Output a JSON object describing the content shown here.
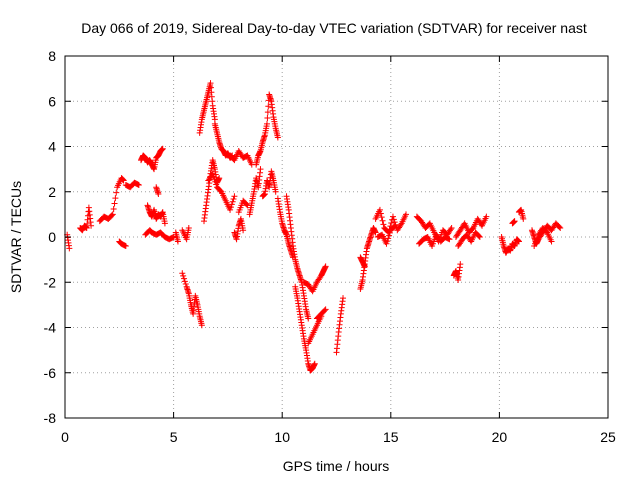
{
  "chart_data": {
    "type": "scatter",
    "title": "Day 066 of 2019, Sidereal Day-to-day VTEC variation (SDTVAR) for receiver nast",
    "xlabel": "GPS time / hours",
    "ylabel": "SDTVAR / TECUs",
    "xlim": [
      0,
      25
    ],
    "ylim": [
      -8,
      8
    ],
    "xticks": [
      0,
      5,
      10,
      15,
      20,
      25
    ],
    "yticks": [
      -8,
      -6,
      -4,
      -2,
      0,
      2,
      4,
      6,
      8
    ],
    "xtick_labels": [
      "0",
      "5",
      "10",
      "15",
      "20",
      "25"
    ],
    "ytick_labels": [
      "-8",
      "-6",
      "-4",
      "-2",
      "0",
      "2",
      "4",
      "6",
      "8"
    ],
    "grid": true,
    "marker": "plus",
    "color": "#ff0000",
    "series": [
      {
        "name": "SDTVAR",
        "segments": [
          {
            "x": [
              0.1,
              0.2
            ],
            "y": [
              0.1,
              -0.5
            ]
          },
          {
            "x": [
              0.7,
              0.8,
              0.9,
              1.0,
              1.1,
              1.2
            ],
            "y": [
              0.4,
              0.3,
              0.5,
              0.4,
              1.3,
              0.5
            ]
          },
          {
            "x": [
              1.6,
              1.8,
              2.0,
              2.2,
              2.4,
              2.6,
              2.7
            ],
            "y": [
              0.7,
              0.9,
              0.8,
              1.0,
              2.2,
              2.6,
              2.5
            ]
          },
          {
            "x": [
              2.5,
              2.6,
              2.8
            ],
            "y": [
              -0.2,
              -0.3,
              -0.4
            ]
          },
          {
            "x": [
              2.8,
              3.0,
              3.2,
              3.4
            ],
            "y": [
              2.3,
              2.2,
              2.4,
              2.3
            ]
          },
          {
            "x": [
              3.5,
              3.6,
              3.7,
              3.8,
              3.9,
              4.0,
              4.1,
              4.2,
              4.3,
              4.4,
              4.5
            ],
            "y": [
              3.4,
              3.6,
              3.5,
              3.3,
              3.4,
              3.2,
              3.0,
              3.5,
              3.6,
              3.8,
              3.9
            ]
          },
          {
            "x": [
              3.7,
              3.9,
              4.0,
              4.2,
              4.4,
              4.6,
              4.8,
              5.0
            ],
            "y": [
              0.1,
              0.3,
              0.2,
              0.1,
              0.2,
              0.0,
              -0.1,
              0.0
            ]
          },
          {
            "x": [
              3.8,
              3.9,
              4.0,
              4.1,
              4.2,
              4.3,
              4.4,
              4.5,
              4.6
            ],
            "y": [
              1.4,
              1.1,
              0.9,
              1.2,
              0.8,
              1.0,
              0.9,
              1.1,
              0.6
            ]
          },
          {
            "x": [
              4.2,
              4.3
            ],
            "y": [
              2.2,
              1.9
            ]
          },
          {
            "x": [
              5.1,
              5.2
            ],
            "y": [
              0.2,
              -0.2
            ]
          },
          {
            "x": [
              5.4,
              5.6,
              5.7
            ],
            "y": [
              0.3,
              -0.1,
              0.4
            ]
          },
          {
            "x": [
              5.4,
              5.6,
              5.7,
              5.8,
              5.9,
              6.0,
              6.1,
              6.2,
              6.3
            ],
            "y": [
              -1.6,
              -2.2,
              -2.5,
              -3.0,
              -3.4,
              -2.6,
              -3.0,
              -3.5,
              -3.9
            ]
          },
          {
            "x": [
              6.2,
              6.3,
              6.4,
              6.5,
              6.6,
              6.7,
              6.8,
              6.9
            ],
            "y": [
              4.6,
              5.2,
              5.6,
              6.0,
              6.4,
              6.8,
              5.8,
              5.2
            ]
          },
          {
            "x": [
              6.4,
              6.5,
              6.6,
              6.7,
              6.8,
              6.9,
              7.0,
              7.1
            ],
            "y": [
              0.7,
              1.4,
              2.1,
              2.8,
              3.4,
              3.0,
              2.4,
              2.6
            ]
          },
          {
            "x": [
              6.6,
              6.8,
              7.0,
              7.2,
              7.4,
              7.6,
              7.8
            ],
            "y": [
              2.5,
              2.8,
              2.2,
              2.0,
              1.6,
              1.2,
              1.8
            ]
          },
          {
            "x": [
              6.9,
              7.0,
              7.1,
              7.2,
              7.3,
              7.4,
              7.5,
              7.6,
              7.7
            ],
            "y": [
              5.0,
              4.6,
              4.2,
              3.9,
              3.8,
              3.6,
              3.7,
              3.5,
              3.6
            ]
          },
          {
            "x": [
              7.6,
              7.8,
              8.0,
              8.2,
              8.4,
              8.6
            ],
            "y": [
              3.6,
              3.4,
              3.8,
              3.5,
              3.6,
              3.2
            ]
          },
          {
            "x": [
              7.8,
              7.9,
              8.0,
              8.1,
              8.2
            ],
            "y": [
              0.2,
              -0.1,
              0.5,
              0.8,
              0.3
            ]
          },
          {
            "x": [
              8.0,
              8.2,
              8.4
            ],
            "y": [
              1.1,
              1.6,
              1.4
            ]
          },
          {
            "x": [
              8.5,
              8.6,
              8.7,
              8.8,
              8.9,
              9.0
            ],
            "y": [
              1.0,
              1.5,
              2.0,
              2.6,
              2.2,
              3.0
            ]
          },
          {
            "x": [
              8.8,
              8.9,
              9.0,
              9.1,
              9.2,
              9.3,
              9.4,
              9.5,
              9.6,
              9.7,
              9.8
            ],
            "y": [
              3.2,
              3.6,
              3.8,
              4.2,
              4.5,
              5.0,
              6.3,
              6.0,
              5.3,
              4.8,
              4.4
            ]
          },
          {
            "x": [
              9.1,
              9.2,
              9.3,
              9.4,
              9.5,
              9.6,
              9.7
            ],
            "y": [
              1.8,
              1.9,
              2.5,
              2.2,
              2.9,
              2.5,
              2.0
            ]
          },
          {
            "x": [
              9.8,
              9.9,
              10.0,
              10.1,
              10.2,
              10.3,
              10.4,
              10.5
            ],
            "y": [
              1.7,
              1.1,
              0.6,
              0.3,
              0.1,
              -0.3,
              -0.6,
              -0.9
            ]
          },
          {
            "x": [
              10.2,
              10.3,
              10.4,
              10.5,
              10.6,
              10.7,
              10.8,
              10.9,
              11.0,
              11.1,
              11.2
            ],
            "y": [
              1.8,
              1.2,
              0.4,
              -0.4,
              -1.0,
              -1.4,
              -1.7,
              -2.0,
              -2.6,
              -3.2,
              -3.6
            ]
          },
          {
            "x": [
              10.6,
              10.7,
              10.8,
              10.9,
              11.0,
              11.1,
              11.2,
              11.3,
              11.4,
              11.5
            ],
            "y": [
              -2.2,
              -2.7,
              -3.3,
              -3.9,
              -4.5,
              -5.0,
              -5.6,
              -5.9,
              -5.8,
              -5.6
            ]
          },
          {
            "x": [
              11.0,
              11.2,
              11.4,
              11.6,
              11.8,
              11.9,
              12.0
            ],
            "y": [
              -2.0,
              -2.1,
              -2.4,
              -2.0,
              -1.7,
              -1.5,
              -1.3
            ]
          },
          {
            "x": [
              11.2,
              11.4,
              11.6,
              11.8
            ],
            "y": [
              -4.7,
              -4.3,
              -3.9,
              -3.5
            ]
          },
          {
            "x": [
              11.6,
              11.8,
              12.0
            ],
            "y": [
              -3.6,
              -3.4,
              -3.2
            ]
          },
          {
            "x": [
              12.5,
              12.6,
              12.7,
              12.8
            ],
            "y": [
              -5.1,
              -4.2,
              -3.4,
              -2.7
            ]
          },
          {
            "x": [
              13.6,
              13.7,
              13.8,
              13.9,
              14.0,
              14.1,
              14.2,
              14.3
            ],
            "y": [
              -2.3,
              -1.9,
              -1.2,
              -0.5,
              -0.2,
              0.1,
              0.4,
              0.2
            ]
          },
          {
            "x": [
              13.6,
              13.7,
              13.8
            ],
            "y": [
              -0.9,
              -1.1,
              -1.3
            ]
          },
          {
            "x": [
              14.3,
              14.5,
              14.7,
              14.9,
              15.1,
              15.3,
              15.5,
              15.7
            ],
            "y": [
              0.8,
              1.2,
              0.4,
              0.2,
              0.9,
              0.3,
              0.6,
              1.0
            ]
          },
          {
            "x": [
              14.4,
              14.6,
              14.8,
              15.0,
              15.2
            ],
            "y": [
              0.0,
              0.1,
              -0.3,
              0.3,
              0.5
            ]
          },
          {
            "x": [
              16.2,
              16.4,
              16.6,
              16.8,
              17.0,
              17.2,
              17.4,
              17.6,
              17.8
            ],
            "y": [
              0.9,
              0.7,
              0.4,
              0.6,
              0.2,
              -0.2,
              0.3,
              0.1,
              0.4
            ]
          },
          {
            "x": [
              16.3,
              16.5,
              16.7,
              16.9,
              17.1,
              17.3,
              17.5,
              17.7
            ],
            "y": [
              -0.3,
              -0.1,
              0.0,
              -0.4,
              0.1,
              -0.2,
              0.0,
              -0.1
            ]
          },
          {
            "x": [
              17.9,
              18.0,
              18.1,
              18.2
            ],
            "y": [
              -1.7,
              -1.5,
              -1.9,
              -1.2
            ]
          },
          {
            "x": [
              18.0,
              18.2,
              18.4,
              18.6,
              18.8,
              19.0,
              19.2,
              19.4
            ],
            "y": [
              0.0,
              0.3,
              0.6,
              0.2,
              0.4,
              0.8,
              0.5,
              0.9
            ]
          },
          {
            "x": [
              18.1,
              18.3,
              18.5,
              18.7,
              18.9,
              19.1
            ],
            "y": [
              -0.4,
              -0.1,
              0.1,
              -0.2,
              0.2,
              0.0
            ]
          },
          {
            "x": [
              20.1,
              20.2,
              20.3,
              20.4,
              20.5,
              20.6,
              20.7,
              20.8,
              20.9
            ],
            "y": [
              0.0,
              -0.4,
              -0.7,
              -0.5,
              -0.6,
              -0.3,
              -0.4,
              -0.1,
              -0.2
            ]
          },
          {
            "x": [
              20.6,
              20.7
            ],
            "y": [
              0.6,
              0.7
            ]
          },
          {
            "x": [
              20.9,
              21.0,
              21.1
            ],
            "y": [
              1.1,
              1.2,
              0.8
            ]
          },
          {
            "x": [
              21.5,
              21.6,
              21.7,
              21.8,
              22.0,
              22.2,
              22.4,
              22.6,
              22.8
            ],
            "y": [
              0.3,
              0.0,
              -0.3,
              -0.1,
              0.2,
              0.5,
              0.3,
              0.6,
              0.4
            ]
          },
          {
            "x": [
              21.6,
              21.8,
              22.0,
              22.2,
              22.4
            ],
            "y": [
              -0.4,
              0.1,
              0.4,
              0.2,
              -0.2
            ]
          }
        ]
      }
    ]
  }
}
